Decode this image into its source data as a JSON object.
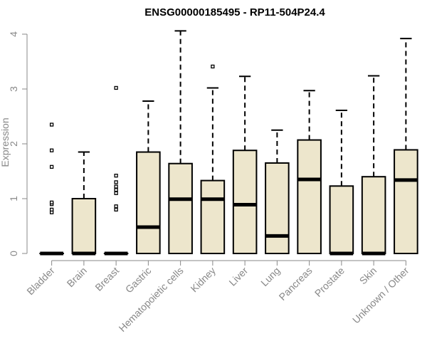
{
  "chart_data": {
    "type": "boxplot",
    "title": "ENSG00000185495 - RP11-504P24.4",
    "xlabel": "",
    "ylabel": "Expression",
    "ylim": [
      0,
      4
    ],
    "yticks": [
      0,
      1,
      2,
      3,
      4
    ],
    "colors": {
      "box_fill": "#ede6cc",
      "box_stroke": "#000000",
      "axis": "#888888",
      "text": "#888888"
    },
    "categories": [
      "Bladder",
      "Brain",
      "Breast",
      "Gastric",
      "Hematopoietic cells",
      "Kidney",
      "Liver",
      "Lung",
      "Pancreas",
      "Prostate",
      "Skin",
      "Unknown / Other"
    ],
    "boxes": [
      {
        "name": "Bladder",
        "q1": 0,
        "median": 0,
        "q3": 0,
        "whisker_low": 0,
        "whisker_high": 0,
        "outliers": [
          0.75,
          0.8,
          0.9,
          0.93,
          1.58,
          1.88,
          2.35
        ]
      },
      {
        "name": "Brain",
        "q1": 0,
        "median": 0,
        "q3": 1.0,
        "whisker_low": 0,
        "whisker_high": 1.85,
        "outliers": []
      },
      {
        "name": "Breast",
        "q1": 0,
        "median": 0,
        "q3": 0,
        "whisker_low": 0,
        "whisker_high": 0,
        "outliers": [
          0.8,
          0.86,
          1.1,
          1.16,
          1.22,
          1.3,
          1.42,
          3.02
        ]
      },
      {
        "name": "Gastric",
        "q1": 0,
        "median": 0.48,
        "q3": 1.85,
        "whisker_low": 0,
        "whisker_high": 2.78,
        "outliers": []
      },
      {
        "name": "Hematopoietic cells",
        "q1": 0,
        "median": 0.99,
        "q3": 1.64,
        "whisker_low": 0,
        "whisker_high": 4.06,
        "outliers": []
      },
      {
        "name": "Kidney",
        "q1": 0,
        "median": 0.99,
        "q3": 1.33,
        "whisker_low": 0,
        "whisker_high": 3.02,
        "outliers": [
          3.41
        ]
      },
      {
        "name": "Liver",
        "q1": 0,
        "median": 0.89,
        "q3": 1.88,
        "whisker_low": 0,
        "whisker_high": 3.23,
        "outliers": []
      },
      {
        "name": "Lung",
        "q1": 0,
        "median": 0.32,
        "q3": 1.65,
        "whisker_low": 0,
        "whisker_high": 2.25,
        "outliers": []
      },
      {
        "name": "Pancreas",
        "q1": 0,
        "median": 1.35,
        "q3": 2.07,
        "whisker_low": 0,
        "whisker_high": 2.97,
        "outliers": []
      },
      {
        "name": "Prostate",
        "q1": 0,
        "median": 0,
        "q3": 1.23,
        "whisker_low": 0,
        "whisker_high": 2.61,
        "outliers": []
      },
      {
        "name": "Skin",
        "q1": 0,
        "median": 0,
        "q3": 1.4,
        "whisker_low": 0,
        "whisker_high": 3.24,
        "outliers": []
      },
      {
        "name": "Unknown / Other",
        "q1": 0,
        "median": 1.34,
        "q3": 1.89,
        "whisker_low": 0,
        "whisker_high": 3.92,
        "outliers": []
      }
    ]
  }
}
